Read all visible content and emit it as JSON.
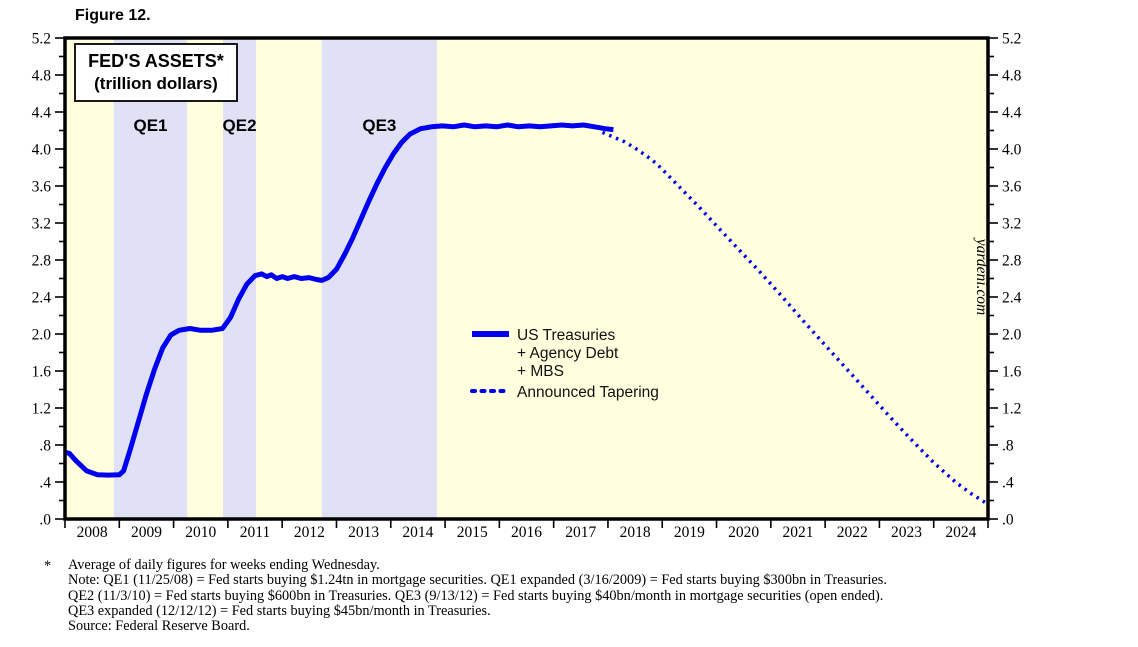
{
  "figure": {
    "label": "Figure 12."
  },
  "chart_data": {
    "type": "line",
    "title": "FED'S ASSETS*",
    "subtitle": "(trillion dollars)",
    "watermark": "yardeni.com",
    "x_axis": {
      "start": 2008,
      "end": 2025,
      "year_labels": [
        "2008",
        "2009",
        "2010",
        "2011",
        "2012",
        "2013",
        "2014",
        "2015",
        "2016",
        "2017",
        "2018",
        "2019",
        "2020",
        "2021",
        "2022",
        "2023",
        "2024"
      ]
    },
    "y_axis": {
      "min": 0.0,
      "max": 5.2,
      "major_step": 0.4,
      "minor_step": 0.2,
      "tick_labels": [
        "5.2",
        "4.8",
        "4.4",
        "4.0",
        "3.6",
        "3.2",
        "2.8",
        "2.4",
        "2.0",
        "1.6",
        "1.2",
        ".8",
        ".4",
        ".0"
      ]
    },
    "qe_bands": [
      {
        "label": "QE1",
        "start": 2008.9,
        "end": 2010.25
      },
      {
        "label": "QE2",
        "start": 2010.91,
        "end": 2011.52
      },
      {
        "label": "QE3",
        "start": 2012.73,
        "end": 2014.85
      }
    ],
    "legend": {
      "series1_lines": [
        "US Treasuries",
        "+ Agency Debt",
        "+ MBS"
      ],
      "series2_label": "Announced Tapering"
    },
    "colors": {
      "line_blue": "#0000EE",
      "plot_background": "#FFFFDE",
      "qe_band": "#E0E1F5",
      "axis": "#000000",
      "title_box_background": "#FFFFFF"
    },
    "series": [
      {
        "name": "US Treasuries + Agency Debt + MBS",
        "style": "solid",
        "points": [
          [
            2008.0,
            0.72
          ],
          [
            2008.08,
            0.71
          ],
          [
            2008.2,
            0.63
          ],
          [
            2008.4,
            0.52
          ],
          [
            2008.6,
            0.478
          ],
          [
            2008.8,
            0.475
          ],
          [
            2009.0,
            0.478
          ],
          [
            2009.08,
            0.52
          ],
          [
            2009.2,
            0.75
          ],
          [
            2009.35,
            1.05
          ],
          [
            2009.5,
            1.35
          ],
          [
            2009.65,
            1.62
          ],
          [
            2009.8,
            1.85
          ],
          [
            2009.95,
            1.99
          ],
          [
            2010.1,
            2.04
          ],
          [
            2010.3,
            2.06
          ],
          [
            2010.5,
            2.04
          ],
          [
            2010.7,
            2.04
          ],
          [
            2010.9,
            2.06
          ],
          [
            2011.05,
            2.18
          ],
          [
            2011.2,
            2.38
          ],
          [
            2011.35,
            2.54
          ],
          [
            2011.5,
            2.63
          ],
          [
            2011.62,
            2.65
          ],
          [
            2011.72,
            2.62
          ],
          [
            2011.8,
            2.64
          ],
          [
            2011.9,
            2.6
          ],
          [
            2012.0,
            2.62
          ],
          [
            2012.1,
            2.6
          ],
          [
            2012.22,
            2.62
          ],
          [
            2012.35,
            2.6
          ],
          [
            2012.5,
            2.61
          ],
          [
            2012.62,
            2.59
          ],
          [
            2012.73,
            2.58
          ],
          [
            2012.85,
            2.61
          ],
          [
            2013.0,
            2.7
          ],
          [
            2013.15,
            2.86
          ],
          [
            2013.3,
            3.04
          ],
          [
            2013.45,
            3.24
          ],
          [
            2013.6,
            3.44
          ],
          [
            2013.75,
            3.63
          ],
          [
            2013.9,
            3.8
          ],
          [
            2014.05,
            3.95
          ],
          [
            2014.2,
            4.07
          ],
          [
            2014.35,
            4.16
          ],
          [
            2014.55,
            4.22
          ],
          [
            2014.75,
            4.24
          ],
          [
            2014.95,
            4.25
          ],
          [
            2015.15,
            4.24
          ],
          [
            2015.35,
            4.26
          ],
          [
            2015.55,
            4.24
          ],
          [
            2015.75,
            4.25
          ],
          [
            2015.95,
            4.24
          ],
          [
            2016.15,
            4.26
          ],
          [
            2016.35,
            4.24
          ],
          [
            2016.55,
            4.25
          ],
          [
            2016.75,
            4.24
          ],
          [
            2016.95,
            4.25
          ],
          [
            2017.15,
            4.26
          ],
          [
            2017.35,
            4.25
          ],
          [
            2017.55,
            4.26
          ],
          [
            2017.75,
            4.24
          ],
          [
            2017.95,
            4.22
          ],
          [
            2018.1,
            4.21
          ]
        ]
      },
      {
        "name": "Announced Tapering",
        "style": "dotted",
        "points": [
          [
            2017.9,
            4.18
          ],
          [
            2018.1,
            4.13
          ],
          [
            2018.3,
            4.08
          ],
          [
            2018.5,
            4.01
          ],
          [
            2018.7,
            3.93
          ],
          [
            2018.9,
            3.84
          ],
          [
            2019.1,
            3.72
          ],
          [
            2019.4,
            3.54
          ],
          [
            2019.7,
            3.36
          ],
          [
            2020.0,
            3.17
          ],
          [
            2020.4,
            2.92
          ],
          [
            2020.8,
            2.67
          ],
          [
            2021.2,
            2.41
          ],
          [
            2021.6,
            2.14
          ],
          [
            2022.0,
            1.88
          ],
          [
            2022.4,
            1.62
          ],
          [
            2022.8,
            1.36
          ],
          [
            2023.2,
            1.1
          ],
          [
            2023.6,
            0.85
          ],
          [
            2024.0,
            0.61
          ],
          [
            2024.4,
            0.4
          ],
          [
            2024.7,
            0.27
          ],
          [
            2025.0,
            0.16
          ]
        ]
      }
    ]
  },
  "footnote": {
    "star": "*",
    "lines": [
      "Average of daily figures for weeks ending Wednesday.",
      "Note: QE1 (11/25/08) = Fed starts buying $1.24tn in mortgage securities. QE1 expanded (3/16/2009) = Fed starts buying $300bn in Treasuries.",
      "QE2 (11/3/10) = Fed starts buying $600bn in Treasuries. QE3 (9/13/12) = Fed starts buying $40bn/month in mortgage securities (open ended).",
      "QE3 expanded (12/12/12) = Fed starts buying $45bn/month in Treasuries.",
      "Source: Federal Reserve Board."
    ]
  }
}
